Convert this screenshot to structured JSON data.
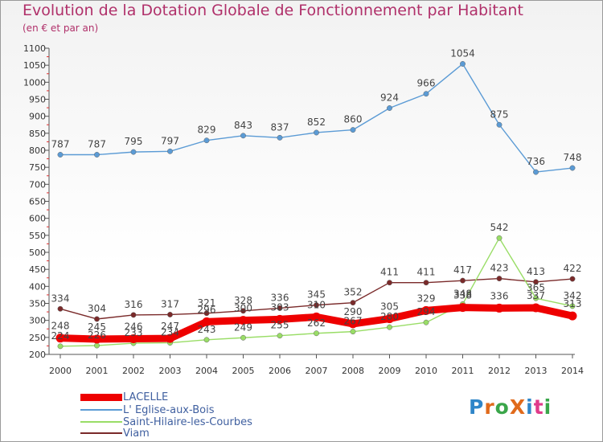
{
  "title": "Evolution de la Dotation Globale de Fonctionnement par Habitant",
  "subtitle": "(en € et par an)",
  "brand": "ProXiti",
  "brand_colors": [
    "#2f86c9",
    "#e06a1b",
    "#3aa64a",
    "#e06a1b",
    "#2f86c9",
    "#e03a8a",
    "#3aa64a"
  ],
  "chart_data": {
    "type": "line",
    "x": [
      "2000",
      "2001",
      "2002",
      "2003",
      "2004",
      "2005",
      "2006",
      "2007",
      "2008",
      "2009",
      "2010",
      "2011",
      "2012",
      "2013",
      "2014"
    ],
    "ylim": [
      200,
      1100
    ],
    "yticks": [
      200,
      250,
      300,
      350,
      400,
      450,
      500,
      550,
      600,
      650,
      700,
      750,
      800,
      850,
      900,
      950,
      1000,
      1050,
      1100
    ],
    "grid": false,
    "legend_position": "bottom-left",
    "series": [
      {
        "name": "LACELLE",
        "color": "#ee0000",
        "values": [
          248,
          245,
          246,
          247,
          296,
          300,
          303,
          310,
          290,
          305,
          329,
          338,
          336,
          337,
          313
        ],
        "labels": [
          "248",
          "245",
          "246",
          "247",
          "296",
          "300",
          "303",
          "310",
          "290",
          "305",
          "329",
          "338",
          "336",
          "337",
          "313"
        ]
      },
      {
        "name": "L' Eglise-aux-Bois",
        "color": "#5b9bd5",
        "values": [
          787,
          787,
          795,
          797,
          829,
          843,
          837,
          852,
          860,
          924,
          966,
          1054,
          875,
          736,
          748
        ],
        "labels": [
          "787",
          "787",
          "795",
          "797",
          "829",
          "843",
          "837",
          "852",
          "860",
          "924",
          "966",
          "1054",
          "875",
          "736",
          "748"
        ]
      },
      {
        "name": "Saint-Hilaire-les-Courbes",
        "color": "#99dd66",
        "values": [
          224,
          226,
          233,
          234,
          243,
          249,
          255,
          262,
          267,
          280,
          294,
          348,
          542,
          365,
          342
        ],
        "labels": [
          "224",
          "226",
          "233",
          "234",
          "243",
          "249",
          "255",
          "262",
          "267",
          "280",
          "294",
          "348",
          "542",
          "365",
          "342"
        ]
      },
      {
        "name": "Viam",
        "color": "#7a2a2a",
        "values": [
          334,
          304,
          316,
          317,
          321,
          328,
          336,
          345,
          352,
          411,
          411,
          417,
          423,
          413,
          422
        ],
        "labels": [
          "334",
          "304",
          "316",
          "317",
          "321",
          "328",
          "336",
          "345",
          "352",
          "411",
          "411",
          "417",
          "423",
          "413",
          "422"
        ]
      }
    ]
  }
}
